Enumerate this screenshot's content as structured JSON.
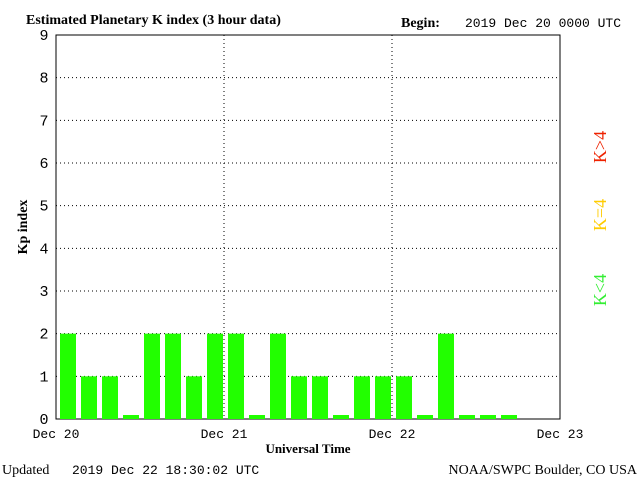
{
  "chart_data": {
    "type": "bar",
    "title": "Estimated Planetary K index (3 hour data)",
    "begin_label": "Begin:",
    "begin_value": "2019 Dec 20 0000 UTC",
    "xlabel": "Universal Time",
    "ylabel": "Kp index",
    "ylim": [
      0,
      9
    ],
    "yticks": [
      "0",
      "1",
      "2",
      "3",
      "4",
      "5",
      "6",
      "7",
      "8",
      "9"
    ],
    "xticks": [
      "Dec 20",
      "Dec 21",
      "Dec 22",
      "Dec 23"
    ],
    "grid": true,
    "interval_hours": 3,
    "values": [
      2,
      1,
      1,
      0,
      2,
      2,
      1,
      2,
      2,
      0,
      2,
      1,
      1,
      0,
      1,
      1,
      1,
      0,
      2,
      0,
      0,
      0
    ],
    "legend": [
      {
        "label": "K<4",
        "color": "#33ee33"
      },
      {
        "label": "K=4",
        "color": "#ffcc00"
      },
      {
        "label": "K>4",
        "color": "#ee2200"
      }
    ]
  },
  "footer": {
    "updated_label": "Updated",
    "updated_value": "2019 Dec 22 18:30:02 UTC",
    "source": "NOAA/SWPC Boulder, CO USA"
  },
  "colors": {
    "bar_low": "#22ff00",
    "grid": "#000000",
    "background": "#ffffff"
  }
}
